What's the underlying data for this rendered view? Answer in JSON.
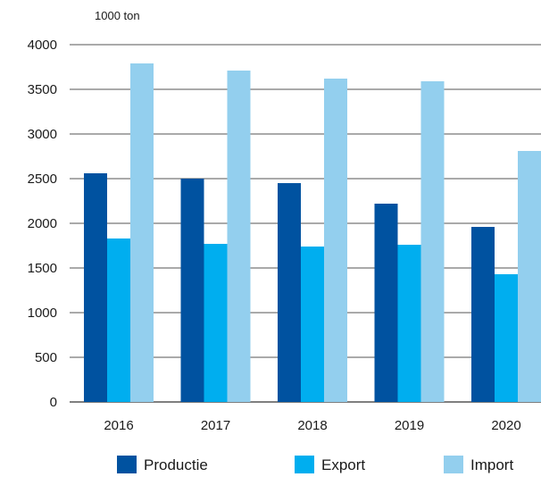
{
  "chart_data": {
    "type": "bar",
    "ylabel": "1000 ton",
    "ylim": [
      0,
      4000
    ],
    "yticks": [
      0,
      500,
      1000,
      1500,
      2000,
      2500,
      3000,
      3500,
      4000
    ],
    "grid": true,
    "legend_position": "bottom",
    "categories": [
      "2016",
      "2017",
      "2018",
      "2019",
      "2020"
    ],
    "series": [
      {
        "name": "Productie",
        "color": "#0052a0",
        "values": [
          2560,
          2500,
          2450,
          2220,
          1960
        ]
      },
      {
        "name": "Export",
        "color": "#00aeef",
        "values": [
          1830,
          1770,
          1740,
          1760,
          1430
        ]
      },
      {
        "name": "Import",
        "color": "#93cfee",
        "values": [
          3790,
          3710,
          3620,
          3590,
          2810
        ]
      }
    ]
  }
}
